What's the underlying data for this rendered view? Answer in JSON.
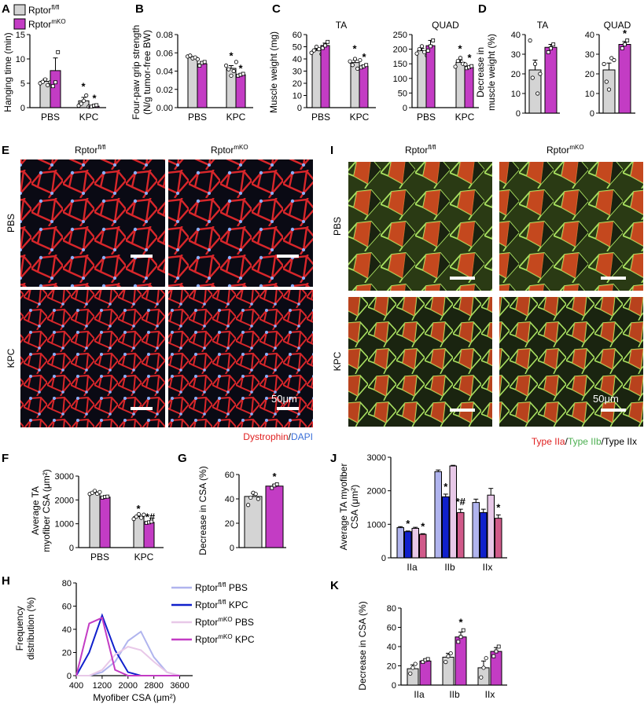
{
  "colors": {
    "ctrl": "#d4d4d4",
    "mko": "#c33cc4",
    "iia_f": "#b0b4ee",
    "iia_k": "#1020cc",
    "mko_pbs_line": "#e8c8e8",
    "mko_kpc_bar": "#d05a8a",
    "red": "#e02020",
    "blue": "#3a6fd8",
    "green": "#5dbb5d"
  },
  "panels": {
    "A": "A",
    "B": "B",
    "C": "C",
    "D": "D",
    "E": "E",
    "F": "F",
    "G": "G",
    "H": "H",
    "I": "I",
    "J": "J",
    "K": "K"
  },
  "legend": {
    "ctrl_base": "Rptor",
    "ctrl_sup": "fl/fl",
    "mko_base": "Rptor",
    "mko_sup": "mKO"
  },
  "micro": {
    "col_ctrl_base": "Rptor",
    "col_ctrl_sup": "fl/fl",
    "col_mko_base": "Rptor",
    "col_mko_sup": "mKO",
    "row_pbs": "PBS",
    "row_kpc": "KPC",
    "scale": "50μm",
    "e_caption_1": "Dystrophin",
    "e_caption_2": "/",
    "e_caption_3": "DAPI",
    "i_caption_1": "Type IIa",
    "i_caption_2": "/",
    "i_caption_3": "Type IIb",
    "i_caption_4": "/Type IIx"
  },
  "chart_data": [
    {
      "id": "A",
      "type": "bar",
      "ylabel": "Hanging time (min)",
      "categories": [
        "PBS",
        "KPC"
      ],
      "ylim": [
        0,
        15
      ],
      "yticks": [
        0,
        5,
        10,
        15
      ],
      "series": [
        {
          "values": [
            5.4,
            1.4
          ],
          "err": [
            0.5,
            0.7
          ],
          "pts": [
            [
              5.0,
              5.3,
              5.8,
              4.6,
              5.2
            ],
            [
              0.4,
              0.8,
              1.4,
              2.5,
              0.2
            ]
          ]
        },
        {
          "values": [
            7.6,
            0.3
          ],
          "err": [
            2.6,
            0.2
          ],
          "pts": [
            [
              4.4,
              5.2,
              11.4
            ],
            [
              0.2,
              0.4,
              0.5
            ]
          ]
        }
      ],
      "stars": [
        [
          "*",
          "*"
        ]
      ]
    },
    {
      "id": "B",
      "type": "bar",
      "ylabel": "Four-paw grip strength",
      "ylabel2": "(N/g tumor-free BW)",
      "categories": [
        "PBS",
        "KPC"
      ],
      "ylim": [
        0,
        0.08
      ],
      "yticks": [
        "0.00",
        "0.02",
        "0.04",
        "0.06",
        "0.08"
      ],
      "series": [
        {
          "values": [
            0.055,
            0.043
          ],
          "err": [
            0.001,
            0.003
          ],
          "pts": [
            [
              0.056,
              0.057,
              0.054,
              0.055,
              0.053
            ],
            [
              0.046,
              0.042,
              0.035,
              0.04,
              0.05
            ]
          ]
        },
        {
          "values": [
            0.048,
            0.036
          ],
          "err": [
            0.002,
            0.001
          ],
          "pts": [
            [
              0.046,
              0.049,
              0.05
            ],
            [
              0.035,
              0.036,
              0.037
            ]
          ]
        }
      ],
      "stars": [
        [
          "*",
          "*"
        ]
      ]
    },
    {
      "id": "C",
      "type": "bar",
      "ylabel": "Muscle weight (mg)",
      "subcharts": [
        {
          "title": "TA",
          "categories": [
            "PBS",
            "KPC"
          ],
          "ylim": [
            0,
            60
          ],
          "yticks": [
            0,
            10,
            20,
            30,
            40,
            50,
            60
          ],
          "series": [
            {
              "values": [
                47,
                37
              ],
              "err": [
                1.5,
                2.0
              ],
              "pts": [
                [
                  45,
                  47,
                  50,
                  48,
                  44
                ],
                [
                  38,
                  35,
                  40,
                  32,
                  39
                ]
              ]
            },
            {
              "values": [
                51,
                34
              ],
              "err": [
                2,
                1
              ],
              "pts": [
                [
                  49,
                  51,
                  54
                ],
                [
                  33,
                  34,
                  35
                ]
              ]
            }
          ],
          "stars": [
            "*",
            "*"
          ]
        },
        {
          "title": "QUAD",
          "categories": [
            "PBS",
            "KPC"
          ],
          "ylim": [
            0,
            250
          ],
          "yticks": [
            0,
            50,
            100,
            150,
            200,
            250
          ],
          "series": [
            {
              "values": [
                195,
                155
              ],
              "err": [
                8,
                8
              ],
              "pts": [
                [
                  185,
                  200,
                  210,
                  190,
                  178
                ],
                [
                  140,
                  160,
                  170,
                  150,
                  148
                ]
              ]
            },
            {
              "values": [
                212,
                138
              ],
              "err": [
                18,
                4
              ],
              "pts": [
                [
                  195,
                  210,
                  230
                ],
                [
                  135,
                  138,
                  142
                ]
              ]
            }
          ],
          "stars": [
            "*",
            "*"
          ]
        }
      ]
    },
    {
      "id": "D",
      "type": "bar",
      "ylabel": "Decrease in",
      "ylabel2": "muscle weight (%)",
      "subcharts": [
        {
          "title": "TA",
          "ylim": [
            0,
            40
          ],
          "yticks": [
            0,
            10,
            20,
            30,
            40
          ],
          "values": [
            22,
            33.5
          ],
          "err": [
            5,
            1.5
          ],
          "pts": [
            [
              37,
              18,
              25,
              10,
              20
            ],
            [
              31,
              33,
              35
            ]
          ],
          "star": ""
        },
        {
          "title": "QUAD",
          "ylim": [
            0,
            40
          ],
          "yticks": [
            0,
            10,
            20,
            30,
            40
          ],
          "values": [
            22,
            35
          ],
          "err": [
            3.5,
            1.5
          ],
          "pts": [
            [
              25,
              16,
              12,
              28,
              27
            ],
            [
              33,
              35,
              37
            ]
          ],
          "star": "*"
        }
      ]
    },
    {
      "id": "F",
      "type": "bar",
      "ylabel": "Average TA",
      "ylabel2": "myofiber CSA (μm²)",
      "categories": [
        "PBS",
        "KPC"
      ],
      "ylim": [
        0,
        3000
      ],
      "yticks": [
        0,
        1000,
        2000,
        3000
      ],
      "series": [
        {
          "values": [
            2300,
            1300
          ],
          "err": [
            50,
            70
          ],
          "pts": [
            [
              2250,
              2300,
              2380,
              2260,
              2330
            ],
            [
              1200,
              1300,
              1400,
              1250,
              1380
            ]
          ]
        },
        {
          "values": [
            2120,
            1060
          ],
          "err": [
            30,
            30
          ],
          "pts": [
            [
              2100,
              2130,
              2140
            ],
            [
              1040,
              1060,
              1090
            ]
          ]
        }
      ],
      "stars": [
        [
          "*",
          "*#"
        ]
      ]
    },
    {
      "id": "G",
      "type": "bar",
      "ylabel": "Decrease in CSA (%)",
      "ylim": [
        0,
        60
      ],
      "yticks": [
        0,
        20,
        40,
        60
      ],
      "values": [
        42,
        50.5
      ],
      "err": [
        2.5,
        1.2
      ],
      "pts": [
        [
          35,
          41,
          45,
          44,
          40
        ],
        [
          49,
          51,
          52
        ]
      ],
      "star": "*"
    },
    {
      "id": "H",
      "type": "line",
      "ylabel": "Frequency",
      "ylabel2": "distribution (%)",
      "xlabel": "Myofiber CSA (μm²)",
      "xlim": [
        400,
        4000
      ],
      "ylim": [
        0,
        80
      ],
      "xticks": [
        400,
        1200,
        2000,
        2800,
        3600
      ],
      "yticks": [
        0,
        20,
        40,
        60,
        80
      ],
      "x": [
        400,
        800,
        1200,
        1600,
        2000,
        2400,
        2800,
        3200,
        3600
      ],
      "series": [
        {
          "name": "PBS",
          "group": "ctrl",
          "values": [
            0,
            0,
            3,
            12,
            30,
            38,
            16,
            3,
            0
          ],
          "color": "#b0b4ee"
        },
        {
          "name": "KPC",
          "group": "ctrl",
          "values": [
            0,
            20,
            52,
            22,
            3,
            0,
            0,
            0,
            0
          ],
          "color": "#1020cc"
        },
        {
          "name": "PBS",
          "group": "mko",
          "values": [
            0,
            0,
            5,
            18,
            25,
            22,
            12,
            3,
            0
          ],
          "color": "#e8c8e8"
        },
        {
          "name": "KPC",
          "group": "mko",
          "values": [
            0,
            45,
            50,
            5,
            0,
            0,
            0,
            0,
            0
          ],
          "color": "#c33cc4"
        }
      ]
    },
    {
      "id": "J",
      "type": "bar",
      "ylabel": "Average TA myofiber",
      "ylabel2": "CSA (μm²)",
      "categories": [
        "IIa",
        "IIb",
        "IIx"
      ],
      "ylim": [
        0,
        3000
      ],
      "yticks": [
        0,
        1000,
        2000,
        3000
      ],
      "groups": [
        [
          900,
          780,
          880,
          700
        ],
        [
          2570,
          1820,
          2740,
          1350
        ],
        [
          1650,
          1350,
          1870,
          1180
        ]
      ],
      "errs": [
        [
          30,
          20,
          30,
          20
        ],
        [
          50,
          80,
          20,
          100
        ],
        [
          100,
          100,
          200,
          100
        ]
      ],
      "stars": [
        [
          "",
          "*",
          "",
          "*"
        ],
        [
          "",
          "*",
          "",
          "*#"
        ],
        [
          "",
          "",
          "",
          "*"
        ]
      ]
    },
    {
      "id": "K",
      "type": "bar",
      "ylabel": "Decrease in CSA (%)",
      "categories": [
        "IIa",
        "IIb",
        "IIx"
      ],
      "ylim": [
        0,
        80
      ],
      "yticks": [
        0,
        20,
        40,
        60,
        80
      ],
      "groups": [
        [
          17,
          25
        ],
        [
          29,
          50
        ],
        [
          18,
          35
        ]
      ],
      "errs": [
        [
          4,
          2
        ],
        [
          4,
          5
        ],
        [
          7,
          4
        ]
      ],
      "pts": [
        [
          [
            12,
            18,
            22
          ],
          [
            24,
            26,
            27
          ]
        ],
        [
          [
            24,
            30,
            33
          ],
          [
            45,
            50,
            57
          ]
        ],
        [
          [
            8,
            18,
            28
          ],
          [
            30,
            35,
            40
          ]
        ]
      ],
      "stars": [
        [
          "",
          ""
        ],
        [
          "",
          "*"
        ],
        [
          "",
          ""
        ]
      ]
    }
  ]
}
